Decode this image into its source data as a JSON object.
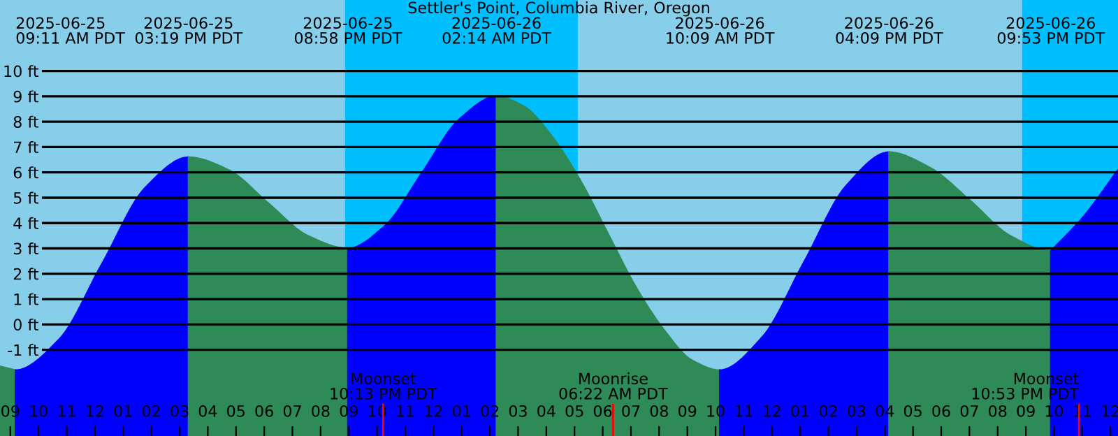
{
  "chart_data": {
    "type": "area",
    "title": "Settler's Point, Columbia River, Oregon",
    "xlim": [
      "2025-06-25T08:38",
      "2025-06-27T00:16"
    ],
    "ylim": [
      -4.4,
      12.8
    ],
    "yticks": [
      {
        "value": -1,
        "label": "-1 ft"
      },
      {
        "value": 0,
        "label": "0 ft"
      },
      {
        "value": 1,
        "label": "1 ft"
      },
      {
        "value": 2,
        "label": "2 ft"
      },
      {
        "value": 3,
        "label": "3 ft"
      },
      {
        "value": 4,
        "label": "4 ft"
      },
      {
        "value": 5,
        "label": "5 ft"
      },
      {
        "value": 6,
        "label": "6 ft"
      },
      {
        "value": 7,
        "label": "7 ft"
      },
      {
        "value": 8,
        "label": "8 ft"
      },
      {
        "value": 9,
        "label": "9 ft"
      },
      {
        "value": 10,
        "label": "10 ft"
      }
    ],
    "xticks": [
      {
        "value": "2025-06-25T09:00",
        "label": "09"
      },
      {
        "value": "2025-06-25T10:00",
        "label": "10"
      },
      {
        "value": "2025-06-25T11:00",
        "label": "11"
      },
      {
        "value": "2025-06-25T12:00",
        "label": "12"
      },
      {
        "value": "2025-06-25T13:00",
        "label": "01"
      },
      {
        "value": "2025-06-25T14:00",
        "label": "02"
      },
      {
        "value": "2025-06-25T15:00",
        "label": "03"
      },
      {
        "value": "2025-06-25T16:00",
        "label": "04"
      },
      {
        "value": "2025-06-25T17:00",
        "label": "05"
      },
      {
        "value": "2025-06-25T18:00",
        "label": "06"
      },
      {
        "value": "2025-06-25T19:00",
        "label": "07"
      },
      {
        "value": "2025-06-25T20:00",
        "label": "08"
      },
      {
        "value": "2025-06-25T21:00",
        "label": "09"
      },
      {
        "value": "2025-06-25T22:00",
        "label": "10"
      },
      {
        "value": "2025-06-25T23:00",
        "label": "11"
      },
      {
        "value": "2025-06-26T00:00",
        "label": "12"
      },
      {
        "value": "2025-06-26T01:00",
        "label": "01"
      },
      {
        "value": "2025-06-26T02:00",
        "label": "02"
      },
      {
        "value": "2025-06-26T03:00",
        "label": "03"
      },
      {
        "value": "2025-06-26T04:00",
        "label": "04"
      },
      {
        "value": "2025-06-26T05:00",
        "label": "05"
      },
      {
        "value": "2025-06-26T06:00",
        "label": "06"
      },
      {
        "value": "2025-06-26T07:00",
        "label": "07"
      },
      {
        "value": "2025-06-26T08:00",
        "label": "08"
      },
      {
        "value": "2025-06-26T09:00",
        "label": "09"
      },
      {
        "value": "2025-06-26T10:00",
        "label": "10"
      },
      {
        "value": "2025-06-26T11:00",
        "label": "11"
      },
      {
        "value": "2025-06-26T12:00",
        "label": "12"
      },
      {
        "value": "2025-06-26T13:00",
        "label": "01"
      },
      {
        "value": "2025-06-26T14:00",
        "label": "02"
      },
      {
        "value": "2025-06-26T15:00",
        "label": "03"
      },
      {
        "value": "2025-06-26T16:00",
        "label": "04"
      },
      {
        "value": "2025-06-26T17:00",
        "label": "05"
      },
      {
        "value": "2025-06-26T18:00",
        "label": "06"
      },
      {
        "value": "2025-06-26T19:00",
        "label": "07"
      },
      {
        "value": "2025-06-26T20:00",
        "label": "08"
      },
      {
        "value": "2025-06-26T21:00",
        "label": "09"
      },
      {
        "value": "2025-06-26T22:00",
        "label": "10"
      },
      {
        "value": "2025-06-26T23:00",
        "label": "11"
      },
      {
        "value": "2025-06-27T00:00",
        "label": "12"
      }
    ],
    "grid": "y",
    "series": [
      {
        "color": "#2e8b57",
        "x": [
          "2025-06-25T08:38",
          "2025-06-25T09:11"
        ],
        "values": [
          -1.65,
          -1.8
        ]
      },
      {
        "color": "#0000ff",
        "x": [
          "2025-06-25T09:11",
          "2025-06-25T10:43",
          "2025-06-25T12:15",
          "2025-06-25T13:47",
          "2025-06-25T15:19"
        ],
        "values": [
          -1.8,
          -0.6,
          2.4,
          5.4,
          6.6
        ]
      },
      {
        "color": "#2e8b57",
        "x": [
          "2025-06-25T15:19",
          "2025-06-25T16:44",
          "2025-06-25T18:08",
          "2025-06-25T19:33",
          "2025-06-25T20:58"
        ],
        "values": [
          6.6,
          6.1,
          4.8,
          3.5,
          3.0
        ]
      },
      {
        "color": "#0000ff",
        "x": [
          "2025-06-25T20:58",
          "2025-06-25T22:17",
          "2025-06-25T23:36",
          "2025-06-26T00:55",
          "2025-06-26T02:14"
        ],
        "values": [
          3.0,
          3.9,
          6.0,
          8.1,
          9.0
        ]
      },
      {
        "color": "#2e8b57",
        "x": [
          "2025-06-26T02:14",
          "2025-06-26T03:13",
          "2025-06-26T04:13",
          "2025-06-26T05:12",
          "2025-06-26T06:11",
          "2025-06-26T07:10",
          "2025-06-26T08:10",
          "2025-06-26T09:09",
          "2025-06-26T10:09"
        ],
        "values": [
          9.0,
          8.6,
          7.4,
          5.7,
          3.6,
          1.5,
          -0.2,
          -1.4,
          -1.8
        ]
      },
      {
        "color": "#0000ff",
        "x": [
          "2025-06-26T10:09",
          "2025-06-26T11:39",
          "2025-06-26T13:09",
          "2025-06-26T14:39",
          "2025-06-26T16:09"
        ],
        "values": [
          -1.8,
          -0.5,
          2.5,
          5.5,
          6.8
        ]
      },
      {
        "color": "#2e8b57",
        "x": [
          "2025-06-26T16:09",
          "2025-06-26T17:35",
          "2025-06-26T19:01",
          "2025-06-26T20:27",
          "2025-06-26T21:53"
        ],
        "values": [
          6.8,
          6.2,
          4.9,
          3.5,
          2.9
        ]
      },
      {
        "color": "#0000ff",
        "x": [
          "2025-06-26T21:53",
          "2025-06-26T23:00",
          "2025-06-27T00:16"
        ],
        "values": [
          2.9,
          4.2,
          6.1
        ]
      }
    ],
    "bands": [
      {
        "axis": "x",
        "from": "2025-06-25T20:52",
        "to": "2025-06-26T05:07",
        "color": "#00bfff"
      },
      {
        "axis": "x",
        "from": "2025-06-26T20:52",
        "to": "2025-06-27T00:16",
        "color": "#00bfff"
      }
    ],
    "ref_lines": [
      {
        "axis": "x",
        "value": "2025-06-25T22:13",
        "label": "Moonset\n10:13 PM PDT",
        "color": "#ff0000"
      },
      {
        "axis": "x",
        "value": "2025-06-26T06:22",
        "label": "Moonrise\n06:22 AM PDT",
        "color": "#ff0000"
      },
      {
        "axis": "x",
        "value": "2025-06-26T22:53",
        "label": "Moonset\n10:53 PM PDT",
        "color": "#ff0000"
      }
    ],
    "annotations": [
      "2025-06-25\n09:11 AM PDT",
      "2025-06-25\n03:19 PM PDT",
      "2025-06-25\n08:58 PM PDT",
      "2025-06-26\n02:14 AM PDT",
      "2025-06-26\n10:09 AM PDT",
      "2025-06-26\n04:09 PM PDT",
      "2025-06-26\n09:53 PM PDT"
    ]
  }
}
